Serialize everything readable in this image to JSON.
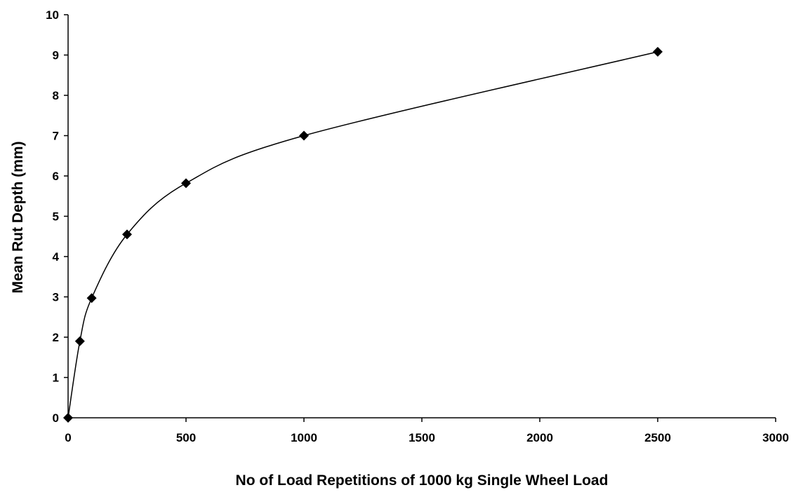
{
  "chart_data": {
    "type": "scatter",
    "title": "",
    "xlabel": "No of Load Repetitions of 1000 kg Single Wheel Load",
    "ylabel": "Mean Rut Depth (mm)",
    "xlim": [
      0,
      3000
    ],
    "ylim": [
      0,
      10
    ],
    "x_ticks": [
      0,
      500,
      1000,
      1500,
      2000,
      2500,
      3000
    ],
    "y_ticks": [
      0,
      1,
      2,
      3,
      4,
      5,
      6,
      7,
      8,
      9,
      10
    ],
    "grid": false,
    "legend": "none",
    "line_style": "smoothed",
    "marker": "diamond",
    "series": [
      {
        "x": [
          0,
          50,
          100,
          250,
          500,
          1000,
          2500
        ],
        "y": [
          0,
          1.9,
          2.97,
          4.55,
          5.82,
          7.0,
          9.08
        ]
      }
    ],
    "colors": {
      "line": "#000000",
      "marker": "#000000",
      "axis": "#000000"
    }
  }
}
